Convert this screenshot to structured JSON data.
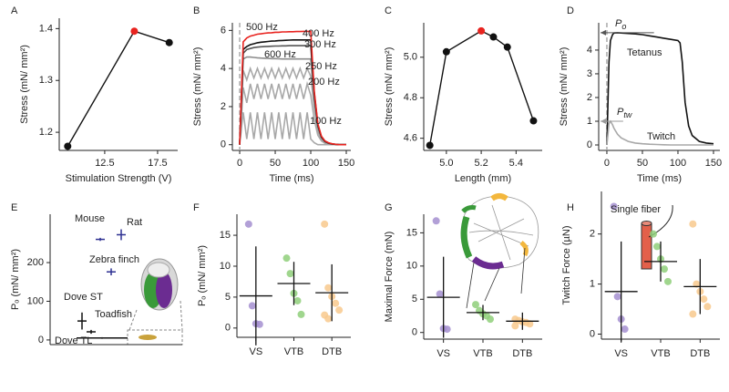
{
  "chart_data": [
    {
      "type": "line",
      "label": "A",
      "xlabel": "Stimulation Strength (V)",
      "ylabel": "Stress (mN/ mm²)",
      "x": [
        9,
        15.3,
        18.6
      ],
      "values": [
        1.173,
        1.395,
        1.373
      ],
      "point_colors": [
        "#111111",
        "#e8231f",
        "#111111"
      ],
      "xlim": [
        8.2,
        19.4
      ],
      "xticks": [
        12.5,
        17.5
      ],
      "ylim": [
        1.165,
        1.42
      ],
      "yticks": [
        1.2,
        1.3,
        1.4
      ]
    },
    {
      "type": "line",
      "label": "B",
      "xlabel": "Time (ms)",
      "ylabel": "Stress (mN/ mm²)",
      "vline": 0,
      "x": [
        0,
        5,
        10,
        15,
        20,
        25,
        30,
        35,
        40,
        45,
        50,
        55,
        60,
        65,
        70,
        75,
        80,
        85,
        90,
        95,
        100,
        105,
        110,
        115,
        120,
        125,
        130,
        135,
        140,
        145,
        150
      ],
      "series": [
        {
          "name": "100 Hz",
          "color": "#a8a8a8",
          "label_color": "#222222",
          "values": [
            0,
            1.7,
            0.3,
            1.7,
            0.3,
            1.7,
            0.3,
            1.7,
            0.3,
            1.7,
            0.3,
            1.7,
            0.3,
            1.7,
            0.3,
            1.7,
            0.3,
            1.7,
            0.3,
            1.7,
            0.3,
            0.1,
            0,
            0,
            0,
            0,
            0,
            0,
            0,
            0,
            0
          ]
        },
        {
          "name": "200 Hz",
          "color": "#a8a8a8",
          "label_color": "#222222",
          "values": [
            0,
            3.0,
            2.2,
            3.2,
            2.4,
            3.2,
            2.4,
            3.2,
            2.4,
            3.2,
            2.4,
            3.2,
            2.4,
            3.2,
            2.4,
            3.2,
            2.4,
            3.2,
            2.4,
            3.2,
            2.6,
            1.3,
            0.5,
            0.2,
            0.08,
            0.04,
            0.02,
            0,
            0,
            0,
            0
          ]
        },
        {
          "name": "250 Hz",
          "color": "#a8a8a8",
          "label_color": "#222222",
          "values": [
            0,
            3.9,
            3.4,
            4.0,
            3.5,
            4.0,
            3.5,
            4.0,
            3.5,
            4.0,
            3.5,
            4.0,
            3.5,
            4.0,
            3.5,
            4.0,
            3.5,
            4.0,
            3.5,
            4.0,
            3.6,
            1.9,
            0.7,
            0.3,
            0.12,
            0.06,
            0.03,
            0.01,
            0,
            0,
            0
          ]
        },
        {
          "name": "600 Hz",
          "color": "#8c8c8c",
          "label_color": "#222222",
          "values": [
            0,
            4.5,
            4.6,
            4.6,
            4.58,
            4.56,
            4.55,
            4.54,
            4.53,
            4.52,
            4.52,
            4.51,
            4.5,
            4.5,
            4.5,
            4.5,
            4.5,
            4.5,
            4.5,
            4.5,
            4.5,
            2.3,
            0.9,
            0.35,
            0.15,
            0.07,
            0.03,
            0.01,
            0,
            0,
            0
          ]
        },
        {
          "name": "300 Hz",
          "color": "#555555",
          "label_color": "#222222",
          "values": [
            0,
            4.8,
            5.0,
            5.05,
            5.1,
            5.12,
            5.14,
            5.15,
            5.16,
            5.17,
            5.18,
            5.18,
            5.19,
            5.19,
            5.2,
            5.2,
            5.2,
            5.2,
            5.2,
            5.2,
            5.2,
            2.6,
            1.0,
            0.4,
            0.17,
            0.08,
            0.04,
            0.02,
            0,
            0,
            0
          ]
        },
        {
          "name": "400 Hz",
          "color": "#111111",
          "label_color": "#222222",
          "values": [
            0,
            5.0,
            5.15,
            5.25,
            5.3,
            5.35,
            5.38,
            5.4,
            5.42,
            5.44,
            5.45,
            5.46,
            5.47,
            5.48,
            5.49,
            5.5,
            5.5,
            5.5,
            5.5,
            5.5,
            5.5,
            2.7,
            1.05,
            0.42,
            0.18,
            0.09,
            0.04,
            0.02,
            0,
            0,
            0
          ]
        },
        {
          "name": "500 Hz",
          "color": "#e8231f",
          "label_color": "#e8231f",
          "values": [
            0,
            5.4,
            5.6,
            5.7,
            5.75,
            5.8,
            5.82,
            5.85,
            5.87,
            5.88,
            5.9,
            5.9,
            5.92,
            5.92,
            5.93,
            5.93,
            5.94,
            5.94,
            5.95,
            5.95,
            5.95,
            2.8,
            1.1,
            0.45,
            0.2,
            0.1,
            0.05,
            0.02,
            0,
            0,
            0
          ]
        }
      ],
      "xlim": [
        -10.3,
        156.4
      ],
      "xticks": [
        0,
        50,
        100,
        150
      ],
      "ylim": [
        -0.3,
        6.4
      ],
      "yticks": [
        0,
        2,
        4,
        6
      ]
    },
    {
      "type": "line",
      "label": "C",
      "xlabel": "Length (mm)",
      "ylabel": "Stress (mN/ mm²)",
      "x": [
        4.905,
        5.0,
        5.2,
        5.27,
        5.35,
        5.5
      ],
      "values": [
        4.565,
        5.027,
        5.13,
        5.1,
        5.05,
        4.686
      ],
      "point_colors": [
        "#111111",
        "#111111",
        "#e8231f",
        "#111111",
        "#111111",
        "#111111"
      ],
      "xlim": [
        4.87,
        5.55
      ],
      "xticks": [
        {
          "value": 5,
          "label": "5.0"
        },
        5.2,
        5.4
      ],
      "ylim": [
        4.54,
        5.17
      ],
      "yticks": [
        4.6,
        4.8,
        {
          "value": 5,
          "label": "5.0"
        }
      ]
    },
    {
      "type": "line",
      "label": "D",
      "xlabel": "Time (ms)",
      "ylabel": "Stress (mN/ mm²)",
      "vline": 0,
      "x": [
        0,
        3,
        5,
        8,
        10,
        15,
        20,
        30,
        40,
        50,
        60,
        70,
        80,
        90,
        100,
        103,
        106,
        110,
        115,
        120,
        130,
        140,
        150
      ],
      "series": [
        {
          "name": "Tetanus",
          "color": "#111111",
          "label_color": "#111111",
          "values": [
            0,
            3.5,
            4.4,
            4.65,
            4.72,
            4.73,
            4.72,
            4.7,
            4.68,
            4.65,
            4.6,
            4.55,
            4.5,
            4.45,
            4.4,
            4.3,
            3.5,
            1.8,
            0.8,
            0.4,
            0.15,
            0.08,
            0.05
          ]
        },
        {
          "name": "Twitch",
          "color": "#a8a8a8",
          "label_color": "#a8a8a8",
          "values": [
            0,
            0.9,
            1.0,
            0.85,
            0.7,
            0.45,
            0.3,
            0.15,
            0.08,
            0.05,
            0.03,
            0.02,
            0.01,
            0,
            0,
            0,
            0,
            0,
            0,
            0,
            0,
            0,
            0
          ]
        }
      ],
      "annotations": [
        {
          "text": "P",
          "sub": "o"
        },
        {
          "text": "P",
          "sub": "tw"
        }
      ],
      "xlim": [
        -11.5,
        159
      ],
      "xticks": [
        0,
        50,
        100,
        150
      ],
      "ylim": [
        -0.23,
        5.15
      ],
      "yticks": [
        0,
        1,
        2,
        3,
        4
      ]
    },
    {
      "type": "errorbar",
      "label": "E",
      "ylabel": "Pₒ (mN/ mm²)",
      "points": [
        {
          "name": "Mouse",
          "value": 260,
          "error": 4,
          "color": "#2e3192"
        },
        {
          "name": "Rat",
          "value": 272,
          "error": 14,
          "color": "#2e3192"
        },
        {
          "name": "Zebra finch",
          "value": 176,
          "error": 9,
          "color": "#2e3192"
        },
        {
          "name": "Dove ST",
          "value": 49,
          "error": 22,
          "color": "#111111"
        },
        {
          "name": "Toadfish",
          "value": 21,
          "error": 5,
          "color": "#111111"
        },
        {
          "name": "Dove TL",
          "value": 5,
          "error": 2,
          "color": "#111111"
        }
      ],
      "ylim": [
        -12,
        325
      ],
      "yticks": [
        0,
        100,
        200
      ]
    },
    {
      "type": "strip",
      "label": "F",
      "ylabel": "Pₒ (mN/ mm²)",
      "categories": [
        "VS",
        "VTB",
        "DTB"
      ],
      "values": [
        [
          16.8,
          3.6,
          0.7,
          0.6
        ],
        [
          11.3,
          8.8,
          5.6,
          4.4,
          2.2
        ],
        [
          16.8,
          6.5,
          5.1,
          4.0,
          2.9,
          2.1,
          1.5
        ]
      ],
      "means": [
        5.2,
        7.2,
        5.7
      ],
      "errors": [
        8.0,
        3.5,
        4.6
      ],
      "colors": [
        "#a58fd0",
        "#8fcf7a",
        "#f8c98d"
      ],
      "ylim": [
        -1.5,
        18.4
      ],
      "yticks": [
        0,
        5,
        10,
        15
      ]
    },
    {
      "type": "strip",
      "label": "G",
      "ylabel": "Maximal Force (mN)",
      "categories": [
        "VS",
        "VTB",
        "DTB"
      ],
      "values": [
        [
          16.8,
          5.8,
          0.6,
          0.5
        ],
        [
          4.2,
          3.3,
          2.8,
          2.5,
          2.0
        ],
        [
          2.0,
          1.8,
          1.6,
          1.5,
          1.3,
          1.0
        ]
      ],
      "means": [
        5.3,
        3.0,
        1.7
      ],
      "errors": [
        6.1,
        1.15,
        1.3
      ],
      "colors": [
        "#a58fd0",
        "#8fcf7a",
        "#f8c98d"
      ],
      "ylim": [
        -1,
        17.8
      ],
      "yticks": [
        0,
        5,
        10,
        15
      ]
    },
    {
      "type": "strip",
      "label": "H",
      "ylabel": "Twitch Force (µN)",
      "annotation": "Single fiber",
      "categories": [
        "VS",
        "VTB",
        "DTB"
      ],
      "values": [
        [
          2.55,
          0.75,
          0.3,
          0.1
        ],
        [
          2.0,
          1.75,
          1.5,
          1.3,
          1.05
        ],
        [
          2.2,
          1.0,
          0.85,
          0.7,
          0.55,
          0.4
        ]
      ],
      "means": [
        0.85,
        1.45,
        0.95
      ],
      "errors": [
        1.0,
        0.4,
        0.55
      ],
      "colors": [
        "#a58fd0",
        "#8fcf7a",
        "#f8c98d"
      ],
      "ylim": [
        -0.1,
        2.85
      ],
      "yticks": [
        0,
        1,
        2
      ]
    }
  ]
}
